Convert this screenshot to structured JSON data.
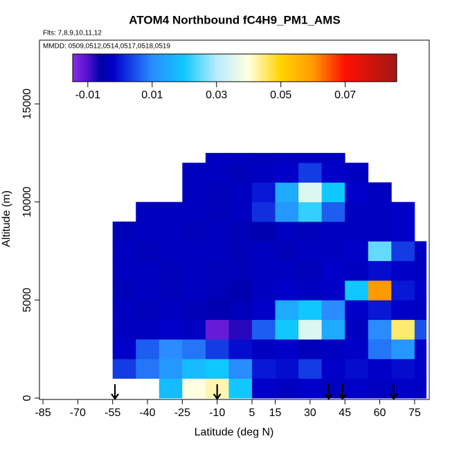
{
  "chart_data": {
    "type": "heatmap",
    "title": "ATOM4 Northbound fC4H9_PM1_AMS",
    "flights": "Flts: 7,8,9,10,11,12",
    "dates": "MMDD: 0509,0512,0514,0517,0518,0519",
    "xlabel": "Latitude (deg N)",
    "ylabel": "Altitude (m)",
    "xlim": [
      -86.5,
      81.3
    ],
    "ylim": [
      -70,
      18250
    ],
    "xticks": [
      -85,
      -70,
      -55,
      -40,
      -25,
      -10,
      5,
      15,
      30,
      45,
      60,
      75
    ],
    "yticks": [
      0,
      5000,
      10000,
      15000
    ],
    "xbins": [
      -55,
      -45,
      -35,
      -25,
      -15,
      -5,
      5,
      15,
      25,
      35,
      45,
      55,
      65,
      75,
      80
    ],
    "ybins": [
      0,
      1000,
      2000,
      3000,
      4000,
      5000,
      6000,
      7000,
      8000,
      9000,
      10000,
      11000,
      12000,
      12500
    ],
    "values": [
      [
        null,
        null,
        0.018,
        0.04,
        0.042,
        0.02,
        -0.002,
        -0.003,
        -0.002,
        -0.003,
        -0.002,
        -0.003,
        -0.002,
        -0.003
      ],
      [
        0.003,
        0.008,
        0.012,
        0.018,
        0.02,
        0.01,
        0.0,
        -0.001,
        0.003,
        -0.002,
        -0.001,
        -0.002,
        -0.001,
        -0.002
      ],
      [
        -0.002,
        0.006,
        0.01,
        0.008,
        0.003,
        -0.001,
        -0.003,
        -0.002,
        -0.004,
        -0.003,
        -0.002,
        0.008,
        0.012,
        -0.002
      ],
      [
        -0.003,
        -0.003,
        -0.002,
        -0.003,
        -0.012,
        -0.008,
        0.006,
        0.02,
        0.035,
        0.015,
        -0.003,
        0.01,
        0.045,
        0.005
      ],
      [
        -0.003,
        -0.004,
        -0.003,
        -0.004,
        -0.005,
        -0.004,
        -0.002,
        0.015,
        0.02,
        0.01,
        -0.002,
        0.0,
        -0.002,
        -0.003
      ],
      [
        -0.004,
        -0.003,
        -0.004,
        -0.003,
        -0.004,
        -0.005,
        -0.003,
        -0.002,
        -0.003,
        -0.002,
        0.02,
        0.06,
        0.0,
        -0.002
      ],
      [
        -0.003,
        -0.003,
        -0.004,
        -0.003,
        -0.004,
        -0.004,
        -0.003,
        -0.003,
        -0.004,
        -0.002,
        -0.003,
        -0.001,
        -0.002,
        -0.003
      ],
      [
        -0.003,
        -0.004,
        -0.003,
        -0.003,
        -0.003,
        -0.004,
        -0.003,
        -0.004,
        -0.003,
        -0.003,
        -0.002,
        0.025,
        0.003,
        -0.003
      ],
      [
        -0.004,
        -0.003,
        -0.003,
        -0.004,
        -0.003,
        -0.004,
        -0.005,
        -0.003,
        -0.004,
        -0.003,
        -0.003,
        -0.003,
        -0.002,
        null
      ],
      [
        null,
        -0.003,
        -0.003,
        -0.003,
        -0.004,
        -0.003,
        0.002,
        0.012,
        0.022,
        0.006,
        -0.003,
        -0.003,
        -0.002,
        null
      ],
      [
        null,
        null,
        null,
        -0.003,
        -0.004,
        -0.003,
        0.0,
        0.015,
        0.035,
        0.02,
        -0.002,
        -0.003,
        null,
        null
      ],
      [
        null,
        null,
        null,
        -0.003,
        -0.003,
        -0.004,
        -0.003,
        -0.002,
        0.003,
        -0.002,
        -0.003,
        null,
        null,
        null
      ],
      [
        null,
        null,
        null,
        null,
        -0.003,
        -0.003,
        -0.004,
        -0.003,
        -0.003,
        -0.003,
        null,
        null,
        null,
        null
      ]
    ],
    "clim": [
      -0.0147,
      0.086
    ],
    "cticks": [
      -0.01,
      0.01,
      0.03,
      0.05,
      0.07
    ],
    "colorscale": [
      [
        -0.015,
        "#8a2be2"
      ],
      [
        -0.01,
        "#5010d0"
      ],
      [
        -0.006,
        "#0000a8"
      ],
      [
        -0.002,
        "#0000c8"
      ],
      [
        0.002,
        "#1030e0"
      ],
      [
        0.01,
        "#2a8cff"
      ],
      [
        0.02,
        "#10c8ff"
      ],
      [
        0.03,
        "#b8ecff"
      ],
      [
        0.04,
        "#ffffe0"
      ],
      [
        0.05,
        "#ffd400"
      ],
      [
        0.06,
        "#ff9a00"
      ],
      [
        0.07,
        "#ff1000"
      ],
      [
        0.086,
        "#a01818"
      ]
    ],
    "flight_latitudes": [
      -54,
      -10,
      38,
      44,
      66
    ]
  }
}
